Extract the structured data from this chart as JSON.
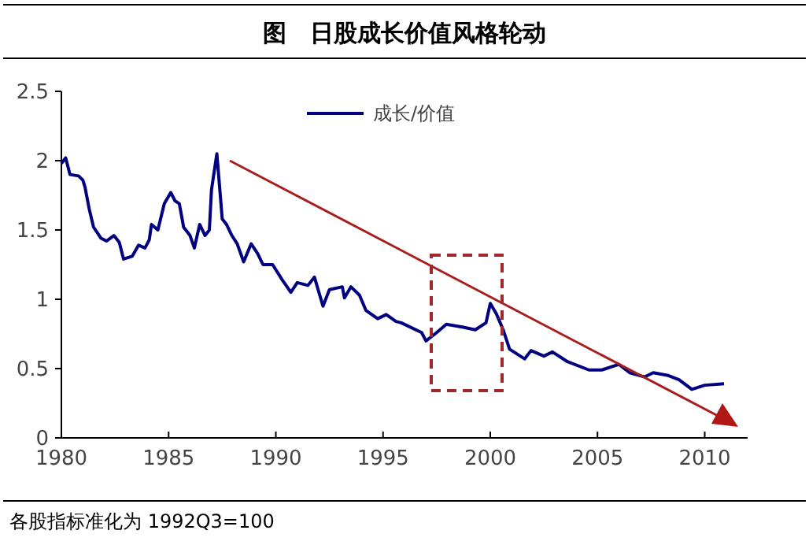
{
  "chart_data": {
    "type": "line",
    "title": "图　日股成长价值风格轮动",
    "x": [
      1980,
      1980.2,
      1980.4,
      1980.8,
      1981.0,
      1981.1,
      1981.3,
      1981.5,
      1981.85,
      1982.1,
      1982.45,
      1982.7,
      1982.9,
      1983.3,
      1983.6,
      1983.9,
      1984.1,
      1984.2,
      1984.5,
      1984.8,
      1985.1,
      1985.3,
      1985.5,
      1985.7,
      1986.0,
      1986.2,
      1986.45,
      1986.7,
      1986.9,
      1987.0,
      1987.25,
      1987.4,
      1987.5,
      1987.7,
      1987.95,
      1988.2,
      1988.5,
      1988.85,
      1989.15,
      1989.4,
      1989.85,
      1990.3,
      1990.7,
      1991.0,
      1991.5,
      1991.8,
      1992.2,
      1992.5,
      1993.1,
      1993.2,
      1993.5,
      1993.9,
      1994.2,
      1994.75,
      1995.15,
      1995.6,
      1995.85,
      1996.8,
      1997.0,
      1997.5,
      1997.95,
      1998.7,
      1999.3,
      1999.8,
      2000.0,
      2000.3,
      2000.6,
      2000.9,
      2001.6,
      2001.9,
      2002.5,
      2002.9,
      2003.6,
      2004.6,
      2005.2,
      2006.0,
      2006.5,
      2007.2,
      2007.6,
      2008.3,
      2008.8,
      2009.4,
      2010.0,
      2010.9
    ],
    "series": [
      {
        "name": "成长/价值",
        "color": "#000080",
        "values": [
          1.98,
          2.02,
          1.9,
          1.89,
          1.86,
          1.81,
          1.65,
          1.52,
          1.44,
          1.42,
          1.46,
          1.41,
          1.29,
          1.31,
          1.39,
          1.37,
          1.43,
          1.54,
          1.5,
          1.69,
          1.77,
          1.71,
          1.69,
          1.52,
          1.46,
          1.37,
          1.54,
          1.46,
          1.5,
          1.79,
          2.05,
          1.77,
          1.58,
          1.54,
          1.46,
          1.4,
          1.27,
          1.4,
          1.33,
          1.25,
          1.25,
          1.14,
          1.05,
          1.12,
          1.1,
          1.16,
          0.95,
          1.07,
          1.09,
          1.01,
          1.09,
          1.03,
          0.92,
          0.86,
          0.89,
          0.84,
          0.83,
          0.76,
          0.7,
          0.76,
          0.82,
          0.8,
          0.78,
          0.83,
          0.97,
          0.89,
          0.78,
          0.64,
          0.57,
          0.63,
          0.59,
          0.62,
          0.55,
          0.49,
          0.49,
          0.53,
          0.47,
          0.44,
          0.47,
          0.45,
          0.42,
          0.35,
          0.38,
          0.39
        ]
      }
    ],
    "xlim": [
      1980,
      2012
    ],
    "xticks": [
      1980,
      1985,
      1990,
      1995,
      2000,
      2005,
      2010
    ],
    "ylim": [
      0,
      2.5
    ],
    "yticks": [
      0,
      0.5,
      1,
      1.5,
      2,
      2.5
    ],
    "legend": "top",
    "grid": false,
    "annotations": [
      "各股指标准化为 1992Q3=100"
    ]
  }
}
